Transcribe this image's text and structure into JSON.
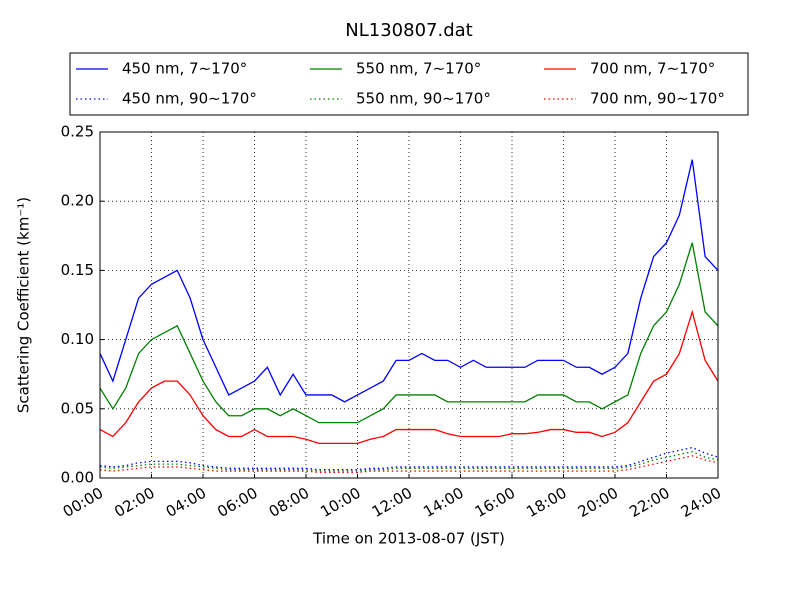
{
  "chart_data": {
    "type": "line",
    "title": "NL130807.dat",
    "x_label": "Time on 2013-08-07 (JST)",
    "y_label": "Scattering Coefficient (km⁻¹)",
    "x": [
      0,
      0.5,
      1,
      1.5,
      2,
      2.5,
      3,
      3.5,
      4,
      4.5,
      5,
      5.5,
      6,
      6.5,
      7,
      7.5,
      8,
      8.5,
      9,
      9.5,
      10,
      10.5,
      11,
      11.5,
      12,
      12.5,
      13,
      13.5,
      14,
      14.5,
      15,
      15.5,
      16,
      16.5,
      17,
      17.5,
      18,
      18.5,
      19,
      19.5,
      20,
      20.5,
      21,
      21.5,
      22,
      22.5,
      23,
      23.5,
      24
    ],
    "xlim": [
      0,
      24
    ],
    "xticks": [
      {
        "value": 0,
        "label": "00:00"
      },
      {
        "value": 2,
        "label": "02:00"
      },
      {
        "value": 4,
        "label": "04:00"
      },
      {
        "value": 6,
        "label": "06:00"
      },
      {
        "value": 8,
        "label": "08:00"
      },
      {
        "value": 10,
        "label": "10:00"
      },
      {
        "value": 12,
        "label": "12:00"
      },
      {
        "value": 14,
        "label": "14:00"
      },
      {
        "value": 16,
        "label": "16:00"
      },
      {
        "value": 18,
        "label": "18:00"
      },
      {
        "value": 20,
        "label": "20:00"
      },
      {
        "value": 22,
        "label": "22:00"
      },
      {
        "value": 24,
        "label": "24:00"
      }
    ],
    "ylim": [
      0,
      0.25
    ],
    "yticks": [
      {
        "value": 0,
        "label": "0.00"
      },
      0.05,
      {
        "value": 0.1,
        "label": "0.10"
      },
      0.15,
      {
        "value": 0.2,
        "label": "0.20"
      },
      0.25
    ],
    "grid": true,
    "legend": "top",
    "series": [
      {
        "name": "450 nm, 7∼170°",
        "color": "#0000ff",
        "dash": "solid",
        "values": [
          0.09,
          0.07,
          0.1,
          0.13,
          0.14,
          0.145,
          0.15,
          0.13,
          0.1,
          0.08,
          0.06,
          0.065,
          0.07,
          0.08,
          0.06,
          0.075,
          0.06,
          0.06,
          0.06,
          0.055,
          0.06,
          0.065,
          0.07,
          0.085,
          0.085,
          0.09,
          0.085,
          0.085,
          0.08,
          0.085,
          0.08,
          0.08,
          0.08,
          0.08,
          0.085,
          0.085,
          0.085,
          0.08,
          0.08,
          0.075,
          0.08,
          0.09,
          0.13,
          0.16,
          0.17,
          0.19,
          0.23,
          0.16,
          0.15
        ]
      },
      {
        "name": "450 nm, 90∼170°",
        "color": "#0000ff",
        "dash": "dotted",
        "values": [
          0.009,
          0.008,
          0.009,
          0.011,
          0.012,
          0.012,
          0.012,
          0.011,
          0.009,
          0.008,
          0.007,
          0.007,
          0.007,
          0.007,
          0.007,
          0.007,
          0.007,
          0.006,
          0.006,
          0.006,
          0.006,
          0.007,
          0.007,
          0.008,
          0.008,
          0.008,
          0.008,
          0.008,
          0.008,
          0.008,
          0.008,
          0.008,
          0.008,
          0.008,
          0.008,
          0.008,
          0.008,
          0.008,
          0.008,
          0.008,
          0.008,
          0.009,
          0.012,
          0.015,
          0.018,
          0.02,
          0.022,
          0.018,
          0.015
        ]
      },
      {
        "name": "550 nm, 7∼170°",
        "color": "#008000",
        "dash": "solid",
        "values": [
          0.065,
          0.05,
          0.065,
          0.09,
          0.1,
          0.105,
          0.11,
          0.09,
          0.07,
          0.055,
          0.045,
          0.045,
          0.05,
          0.05,
          0.045,
          0.05,
          0.045,
          0.04,
          0.04,
          0.04,
          0.04,
          0.045,
          0.05,
          0.06,
          0.06,
          0.06,
          0.06,
          0.055,
          0.055,
          0.055,
          0.055,
          0.055,
          0.055,
          0.055,
          0.06,
          0.06,
          0.06,
          0.055,
          0.055,
          0.05,
          0.055,
          0.06,
          0.09,
          0.11,
          0.12,
          0.14,
          0.17,
          0.12,
          0.11
        ]
      },
      {
        "name": "550 nm, 90∼170°",
        "color": "#008000",
        "dash": "dotted",
        "values": [
          0.008,
          0.007,
          0.008,
          0.009,
          0.01,
          0.01,
          0.01,
          0.009,
          0.008,
          0.007,
          0.006,
          0.006,
          0.006,
          0.006,
          0.006,
          0.006,
          0.006,
          0.005,
          0.005,
          0.005,
          0.005,
          0.006,
          0.006,
          0.007,
          0.007,
          0.007,
          0.007,
          0.007,
          0.007,
          0.007,
          0.007,
          0.007,
          0.007,
          0.007,
          0.007,
          0.007,
          0.007,
          0.007,
          0.007,
          0.007,
          0.007,
          0.008,
          0.01,
          0.013,
          0.015,
          0.017,
          0.019,
          0.015,
          0.013
        ]
      },
      {
        "name": "700 nm, 7∼170°",
        "color": "#ff0000",
        "dash": "solid",
        "values": [
          0.035,
          0.03,
          0.04,
          0.055,
          0.065,
          0.07,
          0.07,
          0.06,
          0.045,
          0.035,
          0.03,
          0.03,
          0.035,
          0.03,
          0.03,
          0.03,
          0.028,
          0.025,
          0.025,
          0.025,
          0.025,
          0.028,
          0.03,
          0.035,
          0.035,
          0.035,
          0.035,
          0.032,
          0.03,
          0.03,
          0.03,
          0.03,
          0.032,
          0.032,
          0.033,
          0.035,
          0.035,
          0.033,
          0.033,
          0.03,
          0.033,
          0.04,
          0.055,
          0.07,
          0.075,
          0.09,
          0.12,
          0.085,
          0.07
        ]
      },
      {
        "name": "700 nm, 90∼170°",
        "color": "#ff0000",
        "dash": "dotted",
        "values": [
          0.006,
          0.005,
          0.006,
          0.007,
          0.008,
          0.008,
          0.008,
          0.007,
          0.006,
          0.005,
          0.005,
          0.005,
          0.005,
          0.005,
          0.005,
          0.005,
          0.005,
          0.004,
          0.004,
          0.004,
          0.004,
          0.005,
          0.005,
          0.005,
          0.005,
          0.005,
          0.005,
          0.005,
          0.005,
          0.005,
          0.005,
          0.005,
          0.005,
          0.005,
          0.005,
          0.005,
          0.005,
          0.005,
          0.005,
          0.005,
          0.005,
          0.006,
          0.008,
          0.01,
          0.012,
          0.014,
          0.016,
          0.013,
          0.011
        ]
      }
    ]
  }
}
